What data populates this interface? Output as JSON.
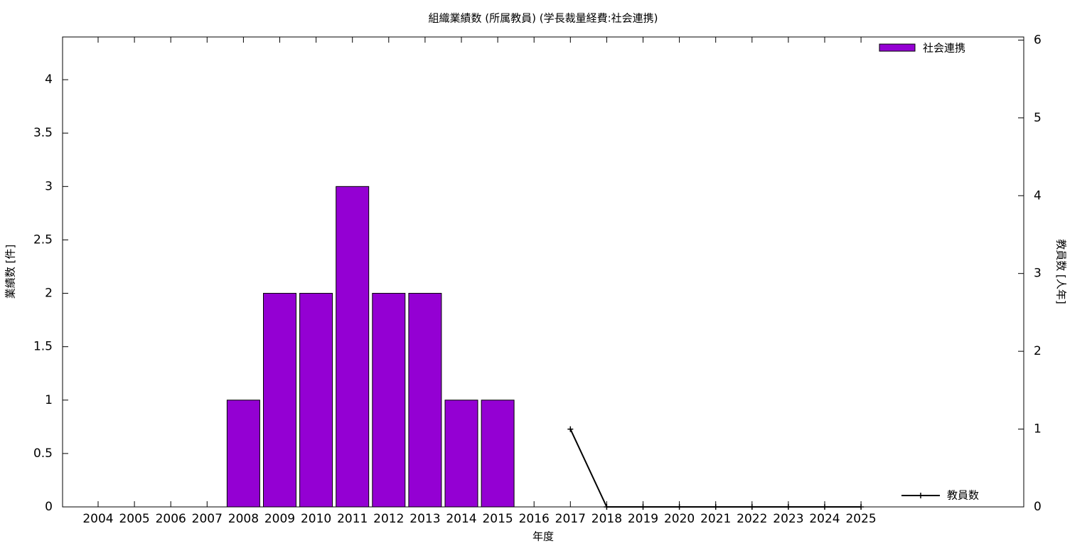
{
  "chart_data": {
    "type": "bar_line",
    "title": "組織業績数 (所属教員) (学長裁量経費:社会連携)",
    "x_label": "年度",
    "y_label": "業績数 [件]",
    "y2_label": "教員数 [人年]",
    "categories": [
      "2004",
      "2005",
      "2006",
      "2007",
      "2008",
      "2009",
      "2010",
      "2011",
      "2012",
      "2013",
      "2014",
      "2015",
      "2016",
      "2017",
      "2018",
      "2019",
      "2020",
      "2021",
      "2022",
      "2023",
      "2024",
      "2025"
    ],
    "series": [
      {
        "name": "社会連携",
        "type": "bar",
        "color": "#9400d3",
        "values": [
          0,
          0,
          0,
          0,
          1,
          2,
          2,
          3,
          2,
          2,
          1,
          1,
          0,
          0,
          0,
          0,
          0,
          0,
          0,
          0,
          0,
          0
        ]
      },
      {
        "name": "教員数",
        "type": "line",
        "axis": "y2",
        "color": "#000000",
        "values": [
          null,
          null,
          null,
          null,
          null,
          null,
          null,
          null,
          null,
          null,
          null,
          null,
          null,
          1,
          0,
          0,
          0,
          0,
          0,
          0,
          0,
          0
        ]
      }
    ],
    "ylim": [
      0,
      4.4
    ],
    "yticks": [
      0,
      0.5,
      1,
      1.5,
      2,
      2.5,
      3,
      3.5,
      4
    ],
    "y2lim": [
      0,
      6.04
    ],
    "y2ticks": [
      0,
      1,
      2,
      3,
      4,
      5,
      6
    ]
  }
}
